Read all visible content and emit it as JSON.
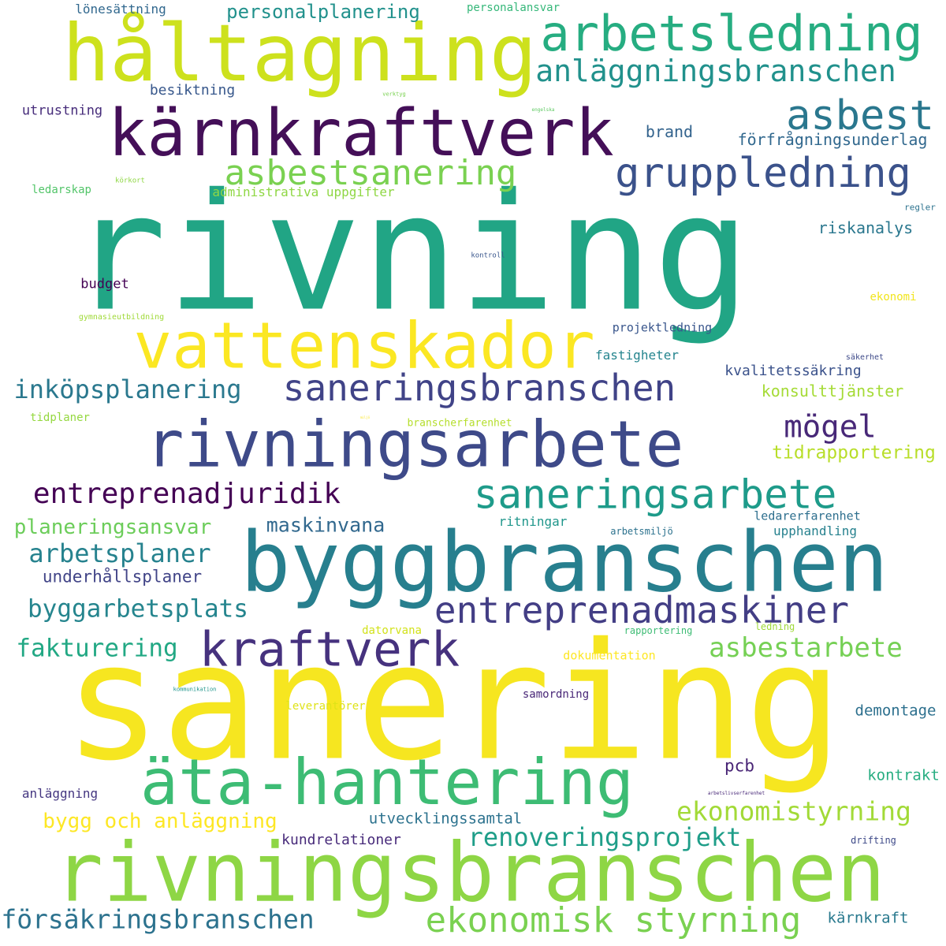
{
  "words": [
    {
      "text": "rivning",
      "color": "#21a585"
    },
    {
      "text": "sanering",
      "color": "#f6e620"
    },
    {
      "text": "rivningsbranschen",
      "color": "#8ed645"
    },
    {
      "text": "byggbranschen",
      "color": "#277f8e"
    },
    {
      "text": "håltagning",
      "color": "#cde11d"
    },
    {
      "text": "kärnkraftverk",
      "color": "#440f58"
    },
    {
      "text": "arbetsledning",
      "color": "#26ad81"
    },
    {
      "text": "rivningsarbete",
      "color": "#3e4a89"
    },
    {
      "text": "vattenskador",
      "color": "#fbe723"
    },
    {
      "text": "äta-hantering",
      "color": "#3dbc74"
    },
    {
      "text": "anläggningsbranschen",
      "color": "#21918c"
    },
    {
      "text": "asbest",
      "color": "#2a778e"
    },
    {
      "text": "gruppledning",
      "color": "#3b528b"
    },
    {
      "text": "asbestsanering",
      "color": "#7ad151"
    },
    {
      "text": "saneringsbranschen",
      "color": "#404387"
    },
    {
      "text": "saneringsarbete",
      "color": "#1e9b8a"
    },
    {
      "text": "entreprenadmaskiner",
      "color": "#433e85"
    },
    {
      "text": "kraftverk",
      "color": "#46327e"
    },
    {
      "text": "ekonomisk styrning",
      "color": "#7ad151"
    },
    {
      "text": "försäkringsbranschen",
      "color": "#2c728e"
    },
    {
      "text": "entreprenadjuridik",
      "color": "#440154"
    },
    {
      "text": "inköpsplanering",
      "color": "#2a788e"
    },
    {
      "text": "mögel",
      "color": "#482878"
    },
    {
      "text": "ekonomistyrning",
      "color": "#a2da37"
    },
    {
      "text": "renoveringsprojekt",
      "color": "#1f9e89"
    },
    {
      "text": "asbestarbete",
      "color": "#75d054"
    },
    {
      "text": "byggarbetsplats",
      "color": "#25858e"
    },
    {
      "text": "arbetsplaner",
      "color": "#26828e"
    },
    {
      "text": "fakturering",
      "color": "#22a884"
    },
    {
      "text": "personalplanering",
      "color": "#21918c"
    },
    {
      "text": "bygg och anläggning",
      "color": "#fde725"
    },
    {
      "text": "planeringsansvar",
      "color": "#6ccd5a"
    },
    {
      "text": "maskinvana",
      "color": "#31688e"
    },
    {
      "text": "underhållsplaner",
      "color": "#414487"
    },
    {
      "text": "kundrelationer",
      "color": "#472a7a"
    },
    {
      "text": "utvecklingssamtal",
      "color": "#2c728e"
    },
    {
      "text": "tidrapportering",
      "color": "#b8de29"
    },
    {
      "text": "konsulttjänster",
      "color": "#a5db36"
    },
    {
      "text": "kvalitetssäkring",
      "color": "#3b528b"
    },
    {
      "text": "förfrågningsunderlag",
      "color": "#31688e"
    },
    {
      "text": "riskanalys",
      "color": "#2a778e"
    },
    {
      "text": "pcb",
      "color": "#482475"
    },
    {
      "text": "demontage",
      "color": "#2d708e"
    },
    {
      "text": "kontrakt",
      "color": "#27ad81"
    },
    {
      "text": "kärnkraft",
      "color": "#29798e"
    },
    {
      "text": "upphandling",
      "color": "#26818e"
    },
    {
      "text": "ledarerfarenhet",
      "color": "#2e6f8e"
    },
    {
      "text": "lönesättning",
      "color": "#31688e"
    },
    {
      "text": "personalansvar",
      "color": "#35b779"
    },
    {
      "text": "besiktning",
      "color": "#38588c"
    },
    {
      "text": "utrustning",
      "color": "#472d7b"
    },
    {
      "text": "brand",
      "color": "#33638d"
    },
    {
      "text": "ledarskap",
      "color": "#52c569"
    },
    {
      "text": "administrativa uppgifter",
      "color": "#8fd744"
    },
    {
      "text": "budget",
      "color": "#440154"
    },
    {
      "text": "projektledning",
      "color": "#39568c"
    },
    {
      "text": "fastigheter",
      "color": "#25858e"
    },
    {
      "text": "ritningar",
      "color": "#1f968b"
    },
    {
      "text": "arbetsmiljö",
      "color": "#2c728e"
    },
    {
      "text": "anläggning",
      "color": "#453781"
    },
    {
      "text": "samordning",
      "color": "#482677"
    },
    {
      "text": "dokumentation",
      "color": "#fde725"
    },
    {
      "text": "datorvana",
      "color": "#d2e21b"
    },
    {
      "text": "rapportering",
      "color": "#3dbc74"
    },
    {
      "text": "ledning",
      "color": "#a0da39"
    },
    {
      "text": "leverantörer",
      "color": "#dfe318"
    },
    {
      "text": "branscherfarenhet",
      "color": "#b5de2b"
    },
    {
      "text": "tidplaner",
      "color": "#95d840"
    },
    {
      "text": "ekonomi",
      "color": "#f1e51d"
    },
    {
      "text": "drifting",
      "color": "#3e4a89"
    },
    {
      "text": "säkerhet",
      "color": "#3e4a89"
    },
    {
      "text": "regler",
      "color": "#2c728e"
    },
    {
      "text": "kontroll",
      "color": "#39568c"
    },
    {
      "text": "körkort",
      "color": "#8fd744"
    },
    {
      "text": "engelska",
      "color": "#5ec962"
    },
    {
      "text": "verktyg",
      "color": "#7ad151"
    },
    {
      "text": "gymnasieutbildning",
      "color": "#a0da39"
    },
    {
      "text": "kommunikation",
      "color": "#1f958b"
    },
    {
      "text": "arbetslivserfarenhet",
      "color": "#482878"
    },
    {
      "text": "miljö",
      "color": "#fde725"
    }
  ]
}
